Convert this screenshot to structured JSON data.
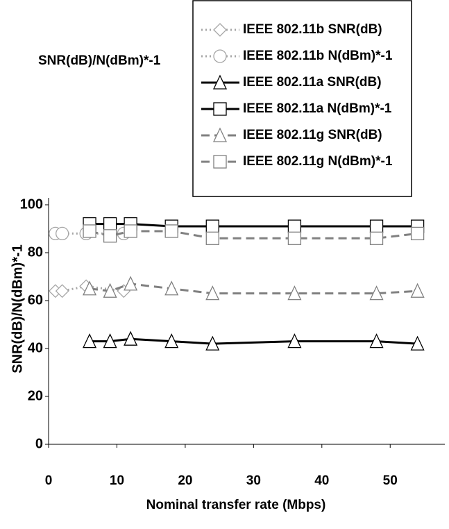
{
  "chart_data": {
    "type": "line",
    "title": "SNR(dB)/N(dBm)*-1",
    "x_label": "Nominal transfer rate (Mbps)",
    "y_label": "SNR(dB)/N(dBm)*-1",
    "xlim": [
      0,
      58
    ],
    "ylim": [
      0,
      100
    ],
    "xticks": [
      0,
      10,
      20,
      30,
      40,
      50
    ],
    "yticks": [
      0,
      20,
      40,
      60,
      80,
      100
    ],
    "legend": "top-right",
    "series": [
      {
        "name": "IEEE 802.11b SNR(dB)",
        "color": "#a6a6a6",
        "style": "dotted",
        "marker": "diamond",
        "x": [
          1,
          2,
          5.5,
          11
        ],
        "values": [
          64,
          64,
          66,
          64
        ]
      },
      {
        "name": "IEEE 802.11b N(dBm)*-1",
        "color": "#a6a6a6",
        "style": "dotted",
        "marker": "circle",
        "x": [
          1,
          2,
          5.5,
          11
        ],
        "values": [
          88,
          88,
          88,
          88
        ]
      },
      {
        "name": "IEEE 802.11a SNR(dB)",
        "color": "#000000",
        "style": "solid",
        "marker": "triangle",
        "x": [
          6,
          9,
          12,
          18,
          24,
          36,
          48,
          54
        ],
        "values": [
          43,
          43,
          44,
          43,
          42,
          43,
          43,
          42
        ]
      },
      {
        "name": "IEEE 802.11a N(dBm)*-1",
        "color": "#000000",
        "style": "solid",
        "marker": "square",
        "x": [
          6,
          9,
          12,
          18,
          24,
          36,
          48,
          54
        ],
        "values": [
          92,
          92,
          92,
          91,
          91,
          91,
          91,
          91
        ]
      },
      {
        "name": "IEEE 802.11g SNR(dB)",
        "color": "#808080",
        "style": "dashed",
        "marker": "triangle",
        "x": [
          6,
          9,
          12,
          18,
          24,
          36,
          48,
          54
        ],
        "values": [
          65,
          64,
          67,
          65,
          63,
          63,
          63,
          64
        ]
      },
      {
        "name": "IEEE 802.11g N(dBm)*-1",
        "color": "#808080",
        "style": "dashed",
        "marker": "square",
        "x": [
          6,
          9,
          12,
          18,
          24,
          36,
          48,
          54
        ],
        "values": [
          89,
          87,
          89,
          89,
          86,
          86,
          86,
          88
        ]
      }
    ]
  }
}
